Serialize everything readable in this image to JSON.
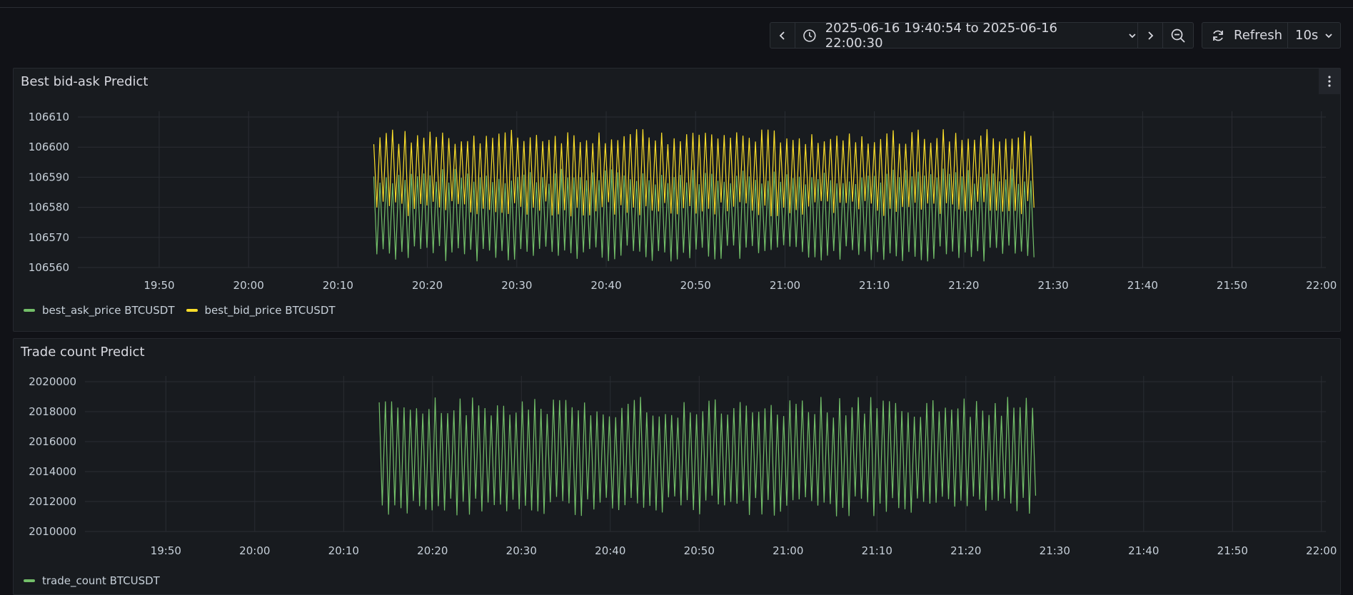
{
  "toolbar": {
    "time_range": "2025-06-16 19:40:54 to 2025-06-16 22:00:30",
    "refresh_label": "Refresh",
    "interval": "10s"
  },
  "panels": [
    {
      "title": "Best bid-ask Predict"
    },
    {
      "title": "Trade count Predict"
    }
  ],
  "chart_data": [
    {
      "type": "line",
      "title": "Best bid-ask Predict",
      "xlabel": "",
      "ylabel": "",
      "x_range": [
        "19:40:54",
        "22:00:30"
      ],
      "x_ticks": [
        "19:50",
        "20:00",
        "20:10",
        "20:20",
        "20:30",
        "20:40",
        "20:50",
        "21:00",
        "21:10",
        "21:20",
        "21:30",
        "21:40",
        "21:50",
        "22:00"
      ],
      "y_ticks": [
        106610,
        106600,
        106590,
        106580,
        106570,
        106560
      ],
      "ylim": [
        106560,
        106610
      ],
      "grid": true,
      "legend": "bottom-left",
      "series": [
        {
          "name": "best_ask_price BTCUSDT",
          "color": "#73bf69",
          "x_start": "20:14",
          "x_end": "21:28",
          "oscillates_between": [
            106562,
            106593
          ]
        },
        {
          "name": "best_bid_price BTCUSDT",
          "color": "#fade2a",
          "x_start": "20:14",
          "x_end": "21:28",
          "oscillates_between": [
            106577,
            106606
          ]
        }
      ]
    },
    {
      "type": "line",
      "title": "Trade count Predict",
      "xlabel": "",
      "ylabel": "",
      "x_range": [
        "19:40:54",
        "22:00:30"
      ],
      "x_ticks": [
        "19:50",
        "20:00",
        "20:10",
        "20:20",
        "20:30",
        "20:40",
        "20:50",
        "21:00",
        "21:10",
        "21:20",
        "21:30",
        "21:40",
        "21:50",
        "22:00"
      ],
      "y_ticks": [
        2020000,
        2018000,
        2016000,
        2014000,
        2012000,
        2010000
      ],
      "ylim": [
        2010000,
        2020000
      ],
      "grid": true,
      "legend": "bottom-left",
      "series": [
        {
          "name": "trade_count BTCUSDT",
          "color": "#73bf69",
          "x_start": "20:14",
          "x_end": "21:28",
          "oscillates_between": [
            2011000,
            2019000
          ]
        }
      ]
    }
  ]
}
